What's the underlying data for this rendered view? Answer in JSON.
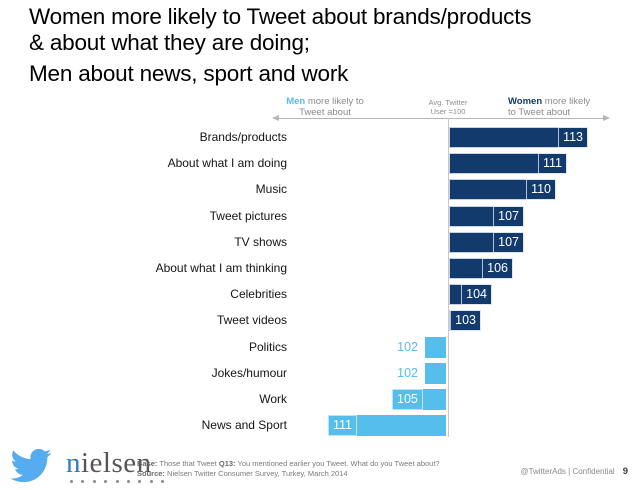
{
  "title": {
    "lines": [
      "Women more likely to Tweet about brands/products",
      "& about what they are doing;",
      "Men about news, sport and work"
    ]
  },
  "chart_data": {
    "type": "bar",
    "orientation": "horizontal-diverging",
    "baseline": 100,
    "headers": {
      "left_bold": "Men",
      "left_rest": " more likely to Tweet about",
      "center": "Avg. Twitter User =100",
      "right_bold": "Women",
      "right_rest": " more likely to Tweet about"
    },
    "categories": [
      "Brands/products",
      "About what I am doing",
      "Music",
      "Tweet pictures",
      "TV shows",
      "About what I am thinking",
      "Celebrities",
      "Tweet videos",
      "Politics",
      "Jokes/humour",
      "Work",
      "News and Sport"
    ],
    "values": [
      113,
      111,
      110,
      107,
      107,
      106,
      104,
      103,
      102,
      102,
      105,
      111
    ],
    "sides": [
      "women",
      "women",
      "women",
      "women",
      "women",
      "women",
      "women",
      "women",
      "men",
      "men",
      "men",
      "men"
    ],
    "colors": {
      "women": "#123A6D",
      "men": "#56BEEA"
    },
    "xlim_units_from_baseline": 13,
    "grid": false
  },
  "footer": {
    "twitter_logo_icon": "twitter-bird",
    "twitter_blue": "#55ACEE",
    "nielsen_first": "n",
    "nielsen_rest": "ielsen",
    "base_label": "Base:",
    "base_text": " Those that Tweet ",
    "q_label": "Q13:",
    "q_text": "  You mentioned earlier you Tweet. What do you Tweet about?",
    "source_label": "Source:",
    "source_text": " Nielsen Twitter Consumer Survey, Turkey, March 2014",
    "handle": "@TwitterAds | Confidential",
    "page": "9"
  }
}
